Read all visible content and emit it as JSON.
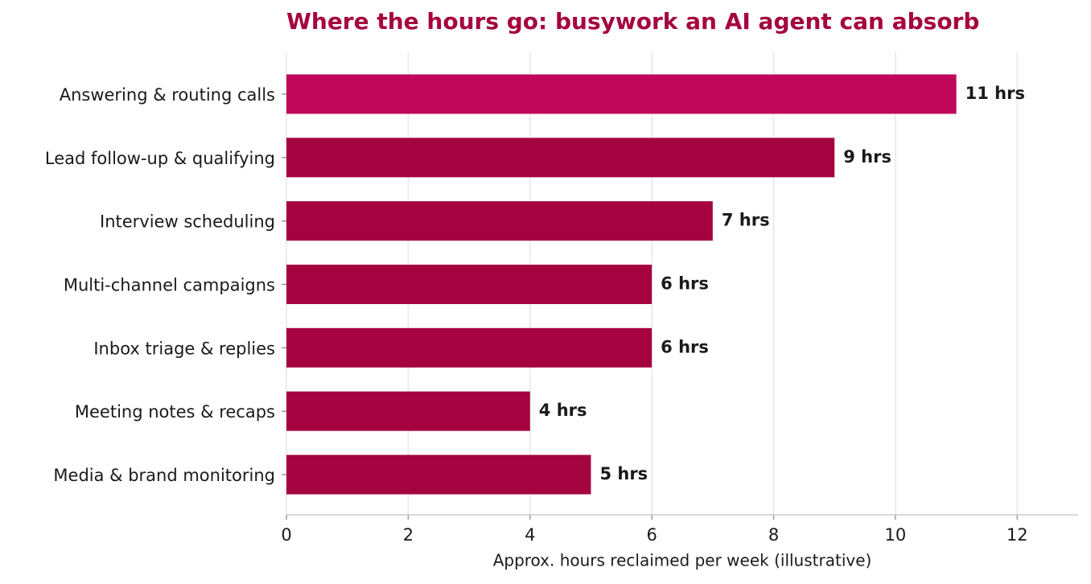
{
  "chart_data": {
    "type": "hbar",
    "title": "Where the hours go: busywork an AI agent can absorb",
    "categories": [
      "Answering & routing calls",
      "Lead follow-up & qualifying",
      "Interview scheduling",
      "Multi-channel campaigns",
      "Inbox triage & replies",
      "Meeting notes & recaps",
      "Media & brand monitoring"
    ],
    "values": [
      11,
      9,
      7,
      6,
      6,
      4,
      5
    ],
    "value_labels": [
      "11 hrs",
      "9 hrs",
      "7 hrs",
      "6 hrs",
      "6 hrs",
      "4 hrs",
      "5 hrs"
    ],
    "colors": [
      "#c0075a",
      "#a5033f",
      "#a5033f",
      "#a5033f",
      "#a5033f",
      "#a5033f",
      "#a5033f"
    ],
    "x_label": "Approx. hours reclaimed per week (illustrative)",
    "xlim": [
      0,
      13
    ],
    "xticks": [
      0,
      2,
      4,
      6,
      8,
      10,
      12
    ],
    "grid": true
  }
}
